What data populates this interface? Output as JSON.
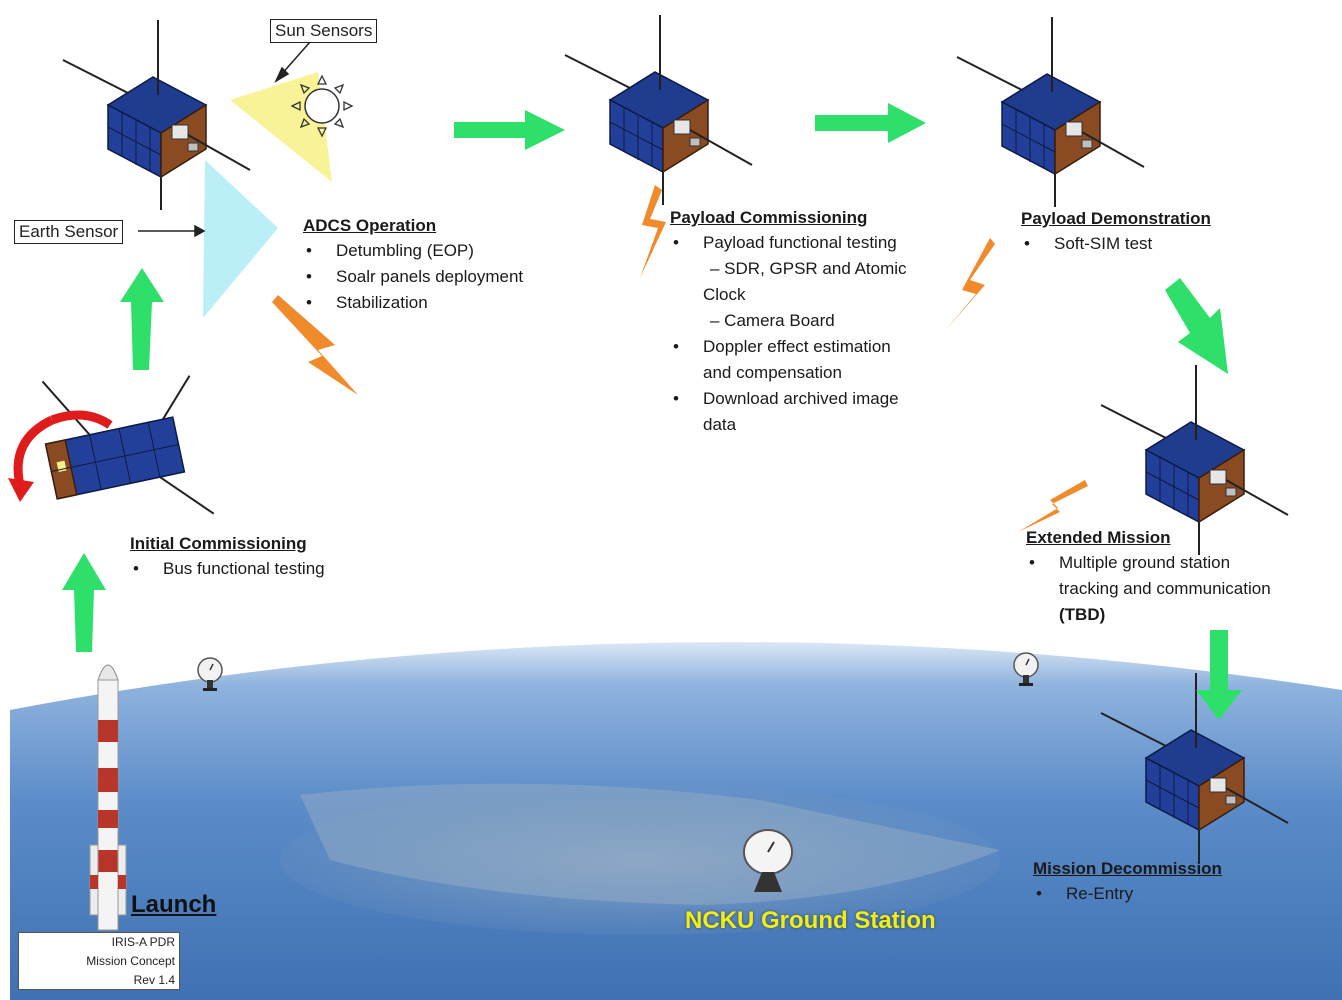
{
  "labels": {
    "sun_sensors": "Sun Sensors",
    "earth_sensor": "Earth Sensor"
  },
  "stages": {
    "adcs": {
      "title": "ADCS Operation",
      "items": [
        "Detumbling (EOP)",
        "Soalr panels deployment",
        "Stabilization"
      ]
    },
    "payload_commissioning": {
      "title": "Payload Commissioning",
      "items": [
        "Payload functional testing",
        "– SDR, GPSR and Atomic",
        "Clock",
        "– Camera Board",
        "Doppler effect estimation",
        "and compensation",
        "Download archived image",
        "data"
      ]
    },
    "payload_demonstration": {
      "title": "Payload Demonstration",
      "items": [
        "Soft-SIM test"
      ]
    },
    "initial_commissioning": {
      "title": "Initial Commissioning",
      "items": [
        "Bus functional testing"
      ]
    },
    "extended_mission": {
      "title": "Extended Mission",
      "items": [
        "Multiple ground station",
        "tracking and communication",
        "(TBD)"
      ]
    },
    "mission_decommission": {
      "title": "Mission Decommission",
      "items": [
        "Re-Entry"
      ]
    }
  },
  "launch_label": "Launch",
  "ground_station_label": "NCKU Ground Station",
  "document_info": [
    "IRIS-A PDR",
    "Mission Concept",
    "Rev 1.4"
  ],
  "colors": {
    "arrow": "#2ee06a",
    "lightning": "#f08a2a",
    "sun_cone": "#f7f28c",
    "earth_cone": "#b6eef7",
    "ground_station_text": "#f2ee10",
    "earth": "#5d8fcb"
  }
}
